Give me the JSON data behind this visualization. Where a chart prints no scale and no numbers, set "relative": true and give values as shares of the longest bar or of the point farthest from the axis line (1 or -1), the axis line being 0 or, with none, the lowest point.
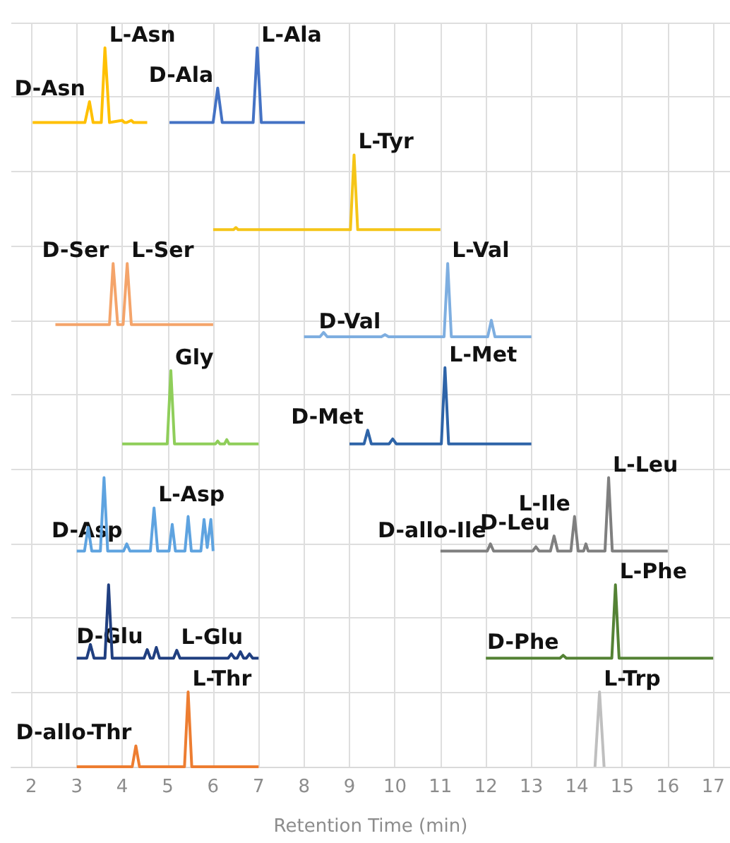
{
  "chart_data": {
    "type": "line",
    "relative": true,
    "xlabel": "Retention Time (min)",
    "xlim": [
      1.56,
      17.37
    ],
    "xticks": [
      2,
      3,
      4,
      5,
      6,
      7,
      8,
      9,
      10,
      11,
      12,
      13,
      14,
      15,
      16,
      17
    ],
    "grid": true,
    "marker": "none",
    "series": [
      {
        "color": "#ffc000",
        "x": [
          2.03,
          3.18,
          3.28,
          3.36,
          3.54,
          3.62,
          3.72,
          4.0,
          4.05,
          4.1,
          4.2,
          4.25,
          4.3,
          4.55
        ],
        "values": [
          0.896,
          0.896,
          0.925,
          0.896,
          0.896,
          1.0,
          0.896,
          0.899,
          0.896,
          0.896,
          0.899,
          0.896,
          0.896,
          0.896
        ]
      },
      {
        "color": "#4472c4",
        "x": [
          5.04,
          6.0,
          6.1,
          6.2,
          6.88,
          6.97,
          7.06,
          8.02
        ],
        "values": [
          0.896,
          0.896,
          0.944,
          0.896,
          0.896,
          1.0,
          0.896,
          0.896
        ]
      },
      {
        "color": "#f5c518",
        "x": [
          6.0,
          6.45,
          6.5,
          6.55,
          9.02,
          9.1,
          9.18,
          11.0
        ],
        "values": [
          0.747,
          0.747,
          0.75,
          0.747,
          0.747,
          0.851,
          0.747,
          0.747
        ]
      },
      {
        "color": "#f4a46a",
        "x": [
          2.53,
          3.72,
          3.8,
          3.9,
          4.02,
          4.11,
          4.2,
          6.0
        ],
        "values": [
          0.615,
          0.615,
          0.7,
          0.615,
          0.615,
          0.7,
          0.615,
          0.615
        ]
      },
      {
        "color": "#7eaee0",
        "x": [
          8.0,
          8.35,
          8.43,
          8.51,
          9.7,
          9.78,
          9.86,
          11.08,
          11.16,
          11.24,
          12.04,
          12.12,
          12.2,
          13.0
        ],
        "values": [
          0.598,
          0.598,
          0.604,
          0.598,
          0.598,
          0.601,
          0.598,
          0.598,
          0.7,
          0.598,
          0.598,
          0.621,
          0.598,
          0.598
        ]
      },
      {
        "color": "#8fce5a",
        "x": [
          4.0,
          4.99,
          5.07,
          5.15,
          6.05,
          6.1,
          6.15,
          6.25,
          6.3,
          6.35,
          7.0
        ],
        "values": [
          0.449,
          0.449,
          0.551,
          0.449,
          0.449,
          0.453,
          0.449,
          0.449,
          0.455,
          0.449,
          0.449
        ]
      },
      {
        "color": "#2e64a8",
        "x": [
          9.0,
          9.32,
          9.4,
          9.48,
          9.87,
          9.95,
          10.03,
          11.02,
          11.1,
          11.18,
          13.0
        ],
        "values": [
          0.449,
          0.449,
          0.468,
          0.449,
          0.449,
          0.456,
          0.449,
          0.449,
          0.555,
          0.449,
          0.449
        ]
      },
      {
        "color": "#5ea3e0",
        "x": [
          3.0,
          3.17,
          3.25,
          3.33,
          3.52,
          3.6,
          3.68,
          4.03,
          4.1,
          4.17,
          4.62,
          4.7,
          4.78,
          5.03,
          5.1,
          5.17,
          5.38,
          5.45,
          5.52,
          5.73,
          5.8,
          5.87,
          5.95,
          6.0
        ],
        "values": [
          0.3,
          0.3,
          0.333,
          0.3,
          0.3,
          0.402,
          0.3,
          0.3,
          0.31,
          0.3,
          0.3,
          0.36,
          0.3,
          0.3,
          0.337,
          0.3,
          0.3,
          0.348,
          0.3,
          0.3,
          0.344,
          0.305,
          0.344,
          0.3
        ]
      },
      {
        "color": "#7f7f7f",
        "x": [
          11.0,
          12.03,
          12.1,
          12.17,
          13.03,
          13.1,
          13.17,
          13.42,
          13.5,
          13.58,
          13.87,
          13.95,
          14.03,
          14.15,
          14.2,
          14.25,
          14.62,
          14.7,
          14.78,
          16.0
        ],
        "values": [
          0.3,
          0.3,
          0.31,
          0.3,
          0.3,
          0.306,
          0.3,
          0.3,
          0.321,
          0.3,
          0.3,
          0.348,
          0.3,
          0.3,
          0.31,
          0.3,
          0.3,
          0.402,
          0.3,
          0.3
        ]
      },
      {
        "color": "#203f80",
        "x": [
          3.0,
          3.22,
          3.3,
          3.38,
          3.62,
          3.7,
          3.78,
          4.48,
          4.55,
          4.62,
          4.68,
          4.75,
          4.82,
          5.13,
          5.2,
          5.27,
          6.33,
          6.4,
          6.47,
          6.53,
          6.6,
          6.67,
          6.73,
          6.8,
          6.87,
          7.0
        ],
        "values": [
          0.151,
          0.151,
          0.17,
          0.151,
          0.151,
          0.253,
          0.151,
          0.151,
          0.163,
          0.151,
          0.151,
          0.166,
          0.151,
          0.151,
          0.162,
          0.151,
          0.151,
          0.157,
          0.151,
          0.151,
          0.16,
          0.151,
          0.151,
          0.157,
          0.151,
          0.151
        ]
      },
      {
        "color": "#548235",
        "x": [
          12.0,
          13.63,
          13.7,
          13.77,
          14.77,
          14.85,
          14.93,
          17.0
        ],
        "values": [
          0.151,
          0.151,
          0.155,
          0.151,
          0.151,
          0.253,
          0.151,
          0.151
        ]
      },
      {
        "color": "#ed7d31",
        "x": [
          3.0,
          4.22,
          4.3,
          4.38,
          5.37,
          5.45,
          5.53,
          7.0
        ],
        "values": [
          0,
          0,
          0.029,
          0,
          0,
          0.104,
          0,
          0
        ]
      },
      {
        "color": "#bfbfbf",
        "x": [
          14.4,
          14.5,
          14.6
        ],
        "values": [
          0,
          0.104,
          0
        ]
      }
    ],
    "annotations": [
      {
        "text": "D-Asn",
        "x": 3.28,
        "y": 0.925
      },
      {
        "text": "L-Asn",
        "x": 3.62,
        "y": 1.0
      },
      {
        "text": "D-Ala",
        "x": 6.1,
        "y": 0.944
      },
      {
        "text": "L-Ala",
        "x": 6.97,
        "y": 1.0
      },
      {
        "text": "L-Tyr",
        "x": 9.1,
        "y": 0.851
      },
      {
        "text": "D-Ser",
        "x": 3.8,
        "y": 0.7
      },
      {
        "text": "L-Ser",
        "x": 4.11,
        "y": 0.7
      },
      {
        "text": "D-Val",
        "x": 9.78,
        "y": 0.601
      },
      {
        "text": "L-Val",
        "x": 11.16,
        "y": 0.7
      },
      {
        "text": "Gly",
        "x": 5.07,
        "y": 0.551
      },
      {
        "text": "D-Met",
        "x": 9.4,
        "y": 0.468
      },
      {
        "text": "L-Met",
        "x": 11.1,
        "y": 0.555
      },
      {
        "text": "D-Asp",
        "x": 4.1,
        "y": 0.31
      },
      {
        "text": "L-Asp",
        "x": 4.7,
        "y": 0.36
      },
      {
        "text": "D-allo-Ile",
        "x": 12.1,
        "y": 0.31
      },
      {
        "text": "D-Leu",
        "x": 13.5,
        "y": 0.321
      },
      {
        "text": "L-Ile",
        "x": 13.95,
        "y": 0.348
      },
      {
        "text": "L-Leu",
        "x": 14.7,
        "y": 0.402
      },
      {
        "text": "D-Glu",
        "x": 4.55,
        "y": 0.163
      },
      {
        "text": "L-Glu",
        "x": 5.2,
        "y": 0.162
      },
      {
        "text": "D-Phe",
        "x": 13.7,
        "y": 0.155
      },
      {
        "text": "L-Phe",
        "x": 14.85,
        "y": 0.253
      },
      {
        "text": "D-allo-Thr",
        "x": 4.3,
        "y": 0.029
      },
      {
        "text": "L-Thr",
        "x": 5.45,
        "y": 0.104
      },
      {
        "text": "L-Trp",
        "x": 14.5,
        "y": 0.104
      }
    ]
  }
}
